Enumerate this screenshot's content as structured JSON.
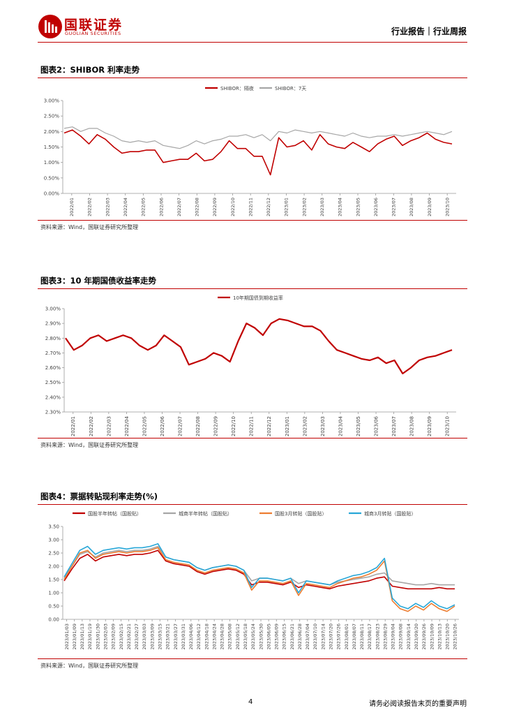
{
  "header": {
    "logo_cn": "国联证券",
    "logo_en": "GUOLIAN SECURITIES",
    "report_type": "行业报告｜行业周报"
  },
  "figures": [
    {
      "title": "图表2：SHIBOR 利率走势",
      "source": "资料来源：Wind，国联证券研究所整理",
      "chart_data": {
        "type": "line",
        "series_names": [
          "SHIBOR：隔夜",
          "SHIBOR：7天"
        ],
        "colors": [
          "#c00000",
          "#a6a6a6"
        ],
        "ylim": [
          0,
          3
        ],
        "yticks": [
          "0.00%",
          "0.50%",
          "1.00%",
          "1.50%",
          "2.00%",
          "2.50%",
          "3.00%"
        ],
        "xticks": [
          "2022/01",
          "2022/02",
          "2022/03",
          "2022/04",
          "2022/05",
          "2022/06",
          "2022/07",
          "2022/08",
          "2022/09",
          "2022/10",
          "2022/11",
          "2022/12",
          "2023/01",
          "2023/02",
          "2023/03",
          "2023/04",
          "2023/05",
          "2023/06",
          "2023/07",
          "2023/08",
          "2023/09",
          "2023/10"
        ],
        "series": [
          {
            "name": "SHIBOR：隔夜",
            "values": [
              1.95,
              2.05,
              1.85,
              1.6,
              1.9,
              1.75,
              1.5,
              1.3,
              1.35,
              1.35,
              1.4,
              1.4,
              1.0,
              1.05,
              1.1,
              1.1,
              1.3,
              1.05,
              1.1,
              1.35,
              1.7,
              1.45,
              1.45,
              1.2,
              1.2,
              0.6,
              1.8,
              1.5,
              1.55,
              1.7,
              1.4,
              1.9,
              1.6,
              1.5,
              1.45,
              1.65,
              1.5,
              1.35,
              1.6,
              1.75,
              1.85,
              1.55,
              1.7,
              1.8,
              1.95,
              1.75,
              1.65,
              1.6
            ]
          },
          {
            "name": "SHIBOR：7天",
            "values": [
              2.1,
              2.15,
              2.0,
              2.1,
              2.1,
              1.95,
              1.85,
              1.7,
              1.65,
              1.7,
              1.65,
              1.7,
              1.55,
              1.5,
              1.45,
              1.55,
              1.7,
              1.6,
              1.7,
              1.75,
              1.85,
              1.85,
              1.9,
              1.8,
              1.9,
              1.7,
              2.0,
              1.95,
              2.05,
              2.0,
              1.95,
              2.0,
              1.95,
              1.9,
              1.85,
              1.95,
              1.85,
              1.8,
              1.85,
              1.85,
              1.9,
              1.85,
              1.9,
              1.95,
              2.0,
              1.95,
              1.9,
              2.0
            ]
          }
        ]
      }
    },
    {
      "title": "图表3：10 年期国债收益率走势",
      "source": "资料来源：Wind，国联证券研究所整理",
      "chart_data": {
        "type": "line",
        "series_names": [
          "10年期国债到期收益率"
        ],
        "colors": [
          "#c00000"
        ],
        "ylim": [
          2.3,
          3.0
        ],
        "yticks": [
          "2.30%",
          "2.40%",
          "2.50%",
          "2.60%",
          "2.70%",
          "2.80%",
          "2.90%",
          "3.00%"
        ],
        "xticks": [
          "2022/01",
          "2022/02",
          "2022/03",
          "2022/04",
          "2022/05",
          "2022/06",
          "2022/07",
          "2022/08",
          "2022/09",
          "2022/10",
          "2022/11",
          "2022/12",
          "2023/01",
          "2023/02",
          "2023/03",
          "2023/04",
          "2023/05",
          "2023/06",
          "2023/07",
          "2023/08",
          "2023/09",
          "2023/10"
        ],
        "series": [
          {
            "name": "10年期国债到期收益率",
            "values": [
              2.8,
              2.72,
              2.75,
              2.8,
              2.82,
              2.78,
              2.8,
              2.82,
              2.8,
              2.75,
              2.72,
              2.75,
              2.82,
              2.78,
              2.74,
              2.62,
              2.64,
              2.66,
              2.7,
              2.68,
              2.64,
              2.78,
              2.9,
              2.87,
              2.82,
              2.9,
              2.93,
              2.92,
              2.9,
              2.88,
              2.88,
              2.85,
              2.78,
              2.72,
              2.7,
              2.68,
              2.66,
              2.65,
              2.67,
              2.63,
              2.65,
              2.56,
              2.6,
              2.65,
              2.67,
              2.68,
              2.7,
              2.72
            ]
          }
        ]
      }
    },
    {
      "title": "图表4：票据转贴现利率走势(%)",
      "source": "资料来源：Wind，国联证券研究所整理",
      "chart_data": {
        "type": "line",
        "series_names": [
          "国股半年转帖（国股贴）",
          "城商半年转帖（国股贴）",
          "国股3月转贴（国股贴）",
          "城商3月转贴（国股贴）"
        ],
        "colors": [
          "#c00000",
          "#a6a6a6",
          "#ed7d31",
          "#28a7d8"
        ],
        "ylim": [
          0,
          3.5
        ],
        "yticks": [
          "0.00",
          "0.50",
          "1.00",
          "1.50",
          "2.00",
          "2.50",
          "3.00",
          "3.50"
        ],
        "xticks": [
          "2023/01/03",
          "2023/01/09",
          "2023/01/13",
          "2023/01/19",
          "2023/01/30",
          "2023/02/03",
          "2023/02/09",
          "2023/02/15",
          "2023/02/21",
          "2023/02/27",
          "2023/03/03",
          "2023/03/09",
          "2023/03/15",
          "2023/03/21",
          "2023/03/27",
          "2023/03/31",
          "2023/04/06",
          "2023/04/12",
          "2023/04/18",
          "2023/04/24",
          "2023/04/28",
          "2023/05/08",
          "2023/05/12",
          "2023/05/18",
          "2023/05/24",
          "2023/05/30",
          "2023/06/05",
          "2023/06/09",
          "2023/06/15",
          "2023/06/21",
          "2023/06/28",
          "2023/07/04",
          "2023/07/10",
          "2023/07/14",
          "2023/07/20",
          "2023/07/26",
          "2023/08/01",
          "2023/08/07",
          "2023/08/11",
          "2023/08/17",
          "2023/08/23",
          "2023/08/29",
          "2023/09/04",
          "2023/09/08",
          "2023/09/14",
          "2023/09/20",
          "2023/09/26",
          "2023/10/09",
          "2023/10/13",
          "2023/10/20",
          "2023/10/26"
        ],
        "series": [
          {
            "name": "国股半年转帖（国股贴）",
            "values": [
              1.45,
              1.9,
              2.3,
              2.45,
              2.2,
              2.35,
              2.4,
              2.45,
              2.4,
              2.45,
              2.45,
              2.5,
              2.6,
              2.2,
              2.1,
              2.05,
              2.0,
              1.8,
              1.7,
              1.8,
              1.85,
              1.9,
              1.85,
              1.7,
              1.3,
              1.4,
              1.4,
              1.35,
              1.3,
              1.4,
              1.2,
              1.3,
              1.25,
              1.2,
              1.15,
              1.25,
              1.3,
              1.35,
              1.4,
              1.45,
              1.55,
              1.6,
              1.25,
              1.2,
              1.15,
              1.15,
              1.15,
              1.15,
              1.2,
              1.15,
              1.15
            ]
          },
          {
            "name": "城商半年转帖（国股贴）",
            "values": [
              1.55,
              2.0,
              2.45,
              2.55,
              2.35,
              2.5,
              2.55,
              2.6,
              2.55,
              2.6,
              2.6,
              2.65,
              2.75,
              2.35,
              2.25,
              2.2,
              2.15,
              1.95,
              1.85,
              1.95,
              2.0,
              2.05,
              2.0,
              1.85,
              1.45,
              1.55,
              1.55,
              1.5,
              1.45,
              1.55,
              1.35,
              1.45,
              1.4,
              1.35,
              1.3,
              1.4,
              1.45,
              1.5,
              1.55,
              1.6,
              1.7,
              1.75,
              1.45,
              1.4,
              1.35,
              1.3,
              1.3,
              1.35,
              1.3,
              1.3,
              1.3
            ]
          },
          {
            "name": "国股3月转贴（国股贴）",
            "values": [
              1.5,
              2.0,
              2.5,
              2.6,
              2.3,
              2.45,
              2.5,
              2.55,
              2.5,
              2.55,
              2.55,
              2.6,
              2.7,
              2.25,
              2.15,
              2.1,
              2.05,
              1.85,
              1.75,
              1.85,
              1.9,
              1.95,
              1.9,
              1.75,
              1.1,
              1.45,
              1.45,
              1.4,
              1.35,
              1.45,
              0.9,
              1.35,
              1.3,
              1.25,
              1.2,
              1.35,
              1.45,
              1.55,
              1.6,
              1.7,
              1.85,
              2.2,
              0.7,
              0.4,
              0.3,
              0.5,
              0.35,
              0.6,
              0.4,
              0.3,
              0.5
            ]
          },
          {
            "name": "城商3月转贴（国股贴）",
            "values": [
              1.6,
              2.1,
              2.6,
              2.75,
              2.45,
              2.6,
              2.65,
              2.7,
              2.65,
              2.7,
              2.7,
              2.75,
              2.85,
              2.35,
              2.25,
              2.2,
              2.15,
              1.95,
              1.85,
              1.95,
              2.0,
              2.05,
              2.0,
              1.85,
              1.2,
              1.55,
              1.55,
              1.5,
              1.45,
              1.55,
              1.0,
              1.45,
              1.4,
              1.35,
              1.3,
              1.45,
              1.55,
              1.65,
              1.7,
              1.8,
              1.95,
              2.3,
              0.8,
              0.5,
              0.4,
              0.6,
              0.45,
              0.7,
              0.5,
              0.4,
              0.55
            ]
          }
        ]
      }
    }
  ],
  "footer": {
    "page_number": "4",
    "disclaimer": "请务必阅读报告末页的重要声明"
  }
}
